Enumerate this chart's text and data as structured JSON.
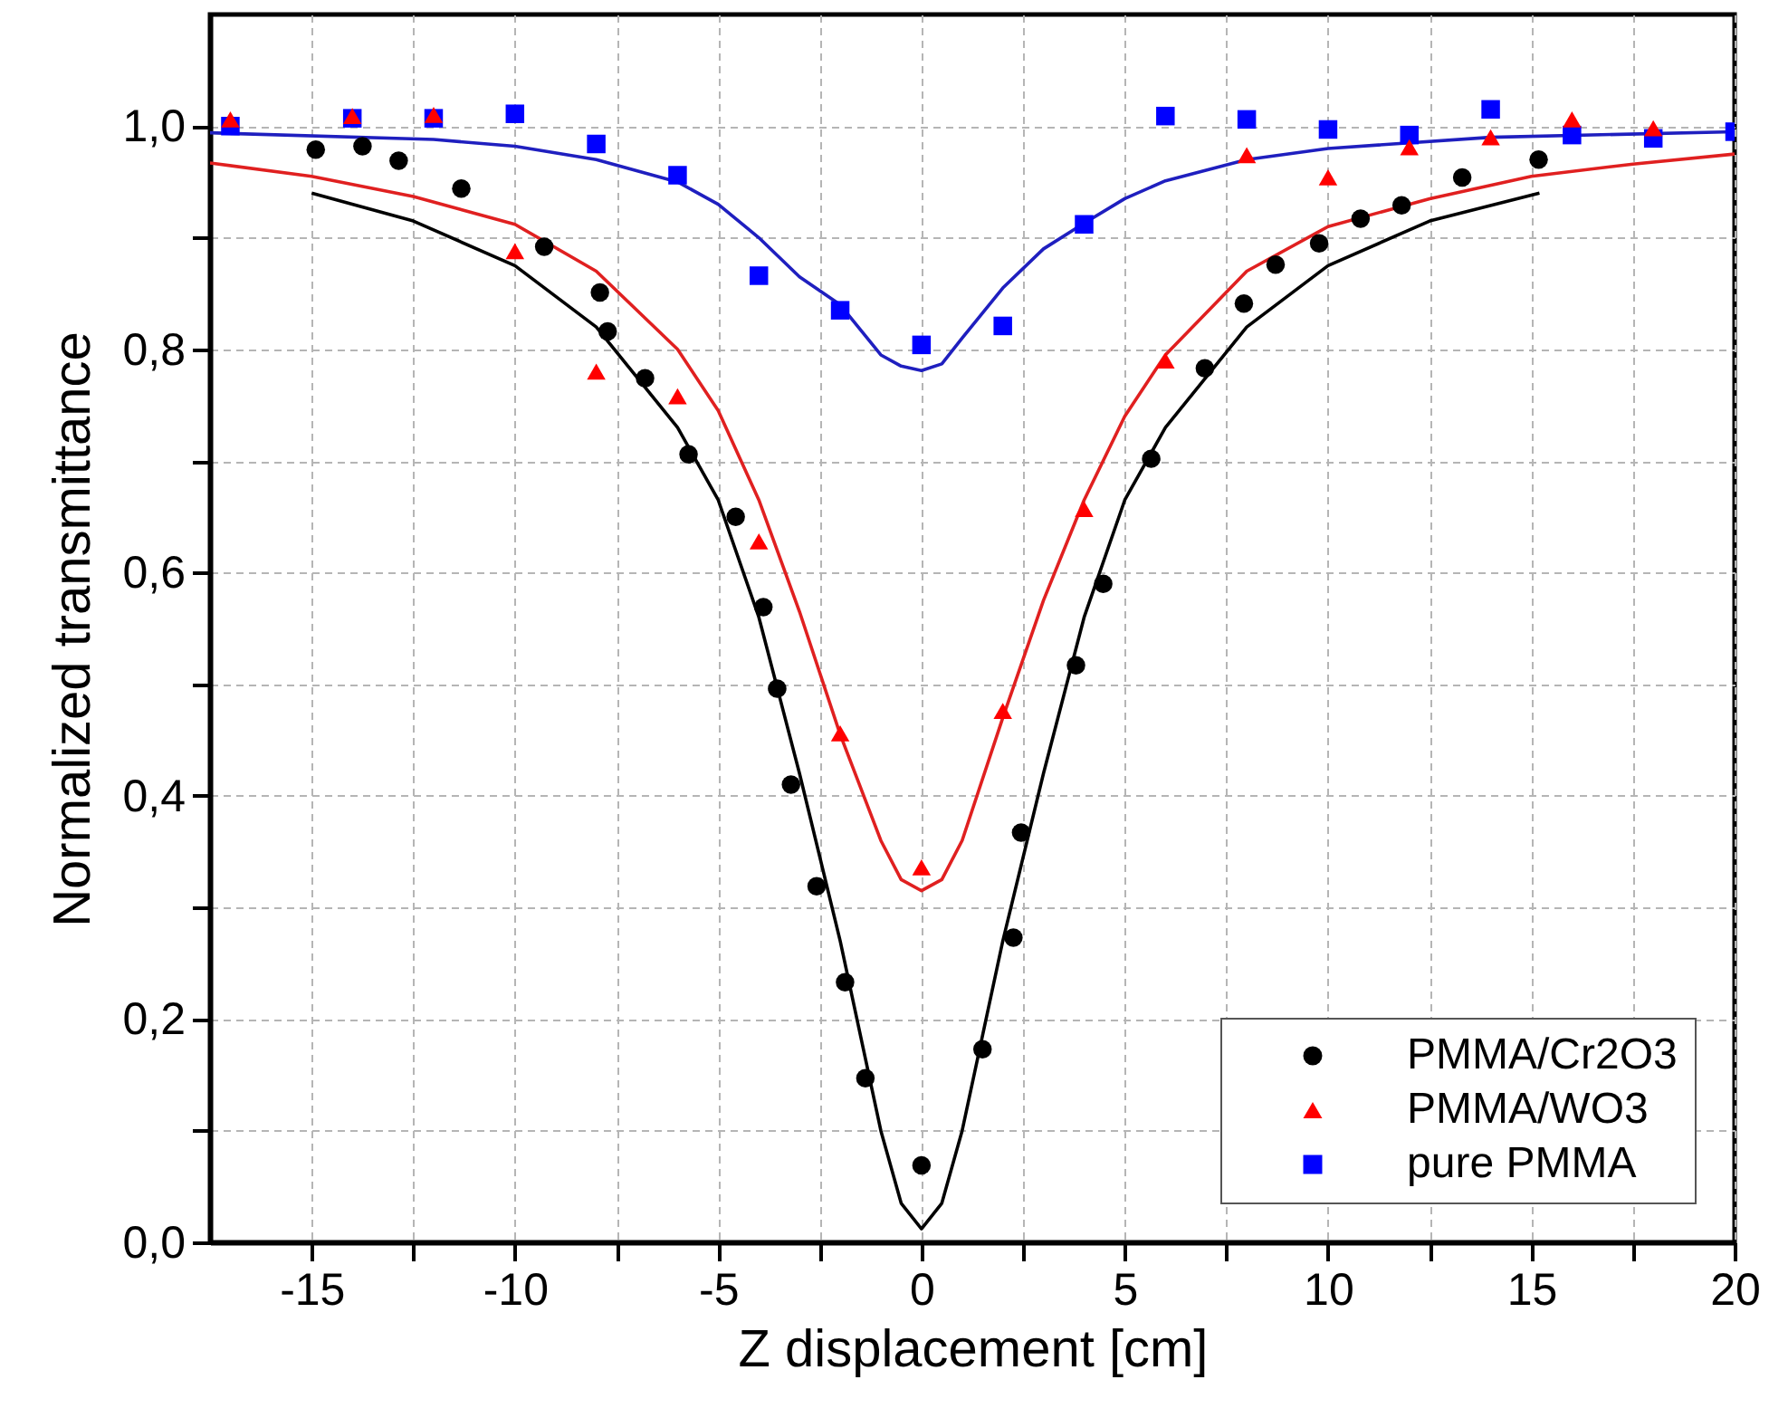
{
  "chart_data": {
    "type": "scatter",
    "xlabel": "Z displacement  [cm]",
    "ylabel": "Normalized transmittance",
    "xlim": [
      -17.5,
      20
    ],
    "ylim": [
      0,
      1.1
    ],
    "xticks": [
      -15,
      {
        "value": -12.5,
        "label": null
      },
      -10,
      {
        "value": -7.5,
        "label": null
      },
      -5,
      {
        "value": -2.5,
        "label": null
      },
      0,
      {
        "value": 2.5,
        "label": null
      },
      5,
      {
        "value": 7.5,
        "label": null
      },
      10,
      {
        "value": 12.5,
        "label": null
      },
      15,
      {
        "value": 17.5,
        "label": null
      },
      20
    ],
    "yticks": [
      {
        "value": 0,
        "label": "0,0"
      },
      {
        "value": 0.1,
        "label": null
      },
      {
        "value": 0.2,
        "label": "0,2"
      },
      {
        "value": 0.3,
        "label": null
      },
      {
        "value": 0.4,
        "label": "0,4"
      },
      {
        "value": 0.5,
        "label": null
      },
      {
        "value": 0.6,
        "label": "0,6"
      },
      {
        "value": 0.7,
        "label": null
      },
      {
        "value": 0.8,
        "label": "0,8"
      },
      {
        "value": 0.9,
        "label": null
      },
      {
        "value": 1.0,
        "label": "1,0"
      }
    ],
    "grid": true,
    "legend": "bottom right",
    "series": [
      {
        "type": "line",
        "color": "#000000",
        "marker": "none",
        "x": [
          -15,
          -12.5,
          -10,
          -8,
          -6,
          -5,
          -4,
          -3,
          -2,
          -1,
          -0.5,
          0,
          0.5,
          1,
          2,
          3,
          4,
          5,
          6,
          8,
          10,
          12.5,
          15.2
        ],
        "values": [
          0.94,
          0.915,
          0.875,
          0.82,
          0.73,
          0.665,
          0.56,
          0.42,
          0.27,
          0.1,
          0.035,
          0.012,
          0.035,
          0.1,
          0.27,
          0.42,
          0.56,
          0.665,
          0.73,
          0.82,
          0.875,
          0.915,
          0.94
        ]
      },
      {
        "type": "line",
        "color": "#e02020",
        "marker": "none",
        "x": [
          -17.5,
          -15,
          -12.5,
          -10,
          -8,
          -6,
          -5,
          -4,
          -3,
          -2,
          -1,
          -0.5,
          0,
          0.5,
          1,
          2,
          3,
          4,
          5,
          6,
          8,
          10,
          12.5,
          15,
          17.5,
          20
        ],
        "values": [
          0.967,
          0.955,
          0.937,
          0.912,
          0.87,
          0.8,
          0.745,
          0.665,
          0.565,
          0.455,
          0.36,
          0.325,
          0.315,
          0.325,
          0.36,
          0.47,
          0.575,
          0.665,
          0.74,
          0.795,
          0.87,
          0.91,
          0.935,
          0.955,
          0.966,
          0.975
        ]
      },
      {
        "type": "line",
        "color": "#1f1fbf",
        "marker": "none",
        "x": [
          -17.5,
          -12,
          -10,
          -8,
          -6,
          -5,
          -4,
          -3,
          -2,
          -1,
          -0.5,
          0,
          0.5,
          1,
          2,
          3,
          4,
          5,
          6,
          8,
          10,
          14,
          20
        ],
        "values": [
          0.994,
          0.988,
          0.982,
          0.97,
          0.95,
          0.93,
          0.9,
          0.865,
          0.84,
          0.795,
          0.785,
          0.781,
          0.787,
          0.81,
          0.855,
          0.89,
          0.913,
          0.935,
          0.951,
          0.97,
          0.98,
          0.99,
          0.995
        ]
      },
      {
        "name": "PMMA/Cr2O3",
        "color": "#000000",
        "marker": "circle",
        "x": [
          -14.9,
          -13.75,
          -12.86,
          -11.32,
          -9.28,
          -7.91,
          -7.72,
          -6.8,
          -5.73,
          -4.57,
          -3.89,
          -3.55,
          -3.21,
          -2.58,
          -1.88,
          -1.38,
          0,
          1.5,
          2.26,
          2.45,
          3.8,
          4.47,
          5.65,
          6.97,
          7.93,
          8.71,
          9.78,
          10.8,
          11.81,
          13.3,
          15.18
        ],
        "values": [
          0.979,
          0.982,
          0.969,
          0.944,
          0.892,
          0.851,
          0.816,
          0.774,
          0.706,
          0.65,
          0.569,
          0.496,
          0.41,
          0.319,
          0.233,
          0.147,
          0.069,
          0.173,
          0.273,
          0.367,
          0.517,
          0.59,
          0.702,
          0.783,
          0.841,
          0.876,
          0.895,
          0.917,
          0.929,
          0.954,
          0.97
        ]
      },
      {
        "name": "PMMA/WO3",
        "color": "#ff0000",
        "marker": "triangle",
        "x": [
          -17,
          -14,
          -12,
          -10,
          -8,
          -6,
          -4,
          -2,
          0,
          2,
          4,
          6,
          8,
          10,
          12,
          14,
          16,
          18
        ],
        "values": [
          1.006,
          1.009,
          1.01,
          0.888,
          0.78,
          0.758,
          0.628,
          0.456,
          0.336,
          0.476,
          0.657,
          0.79,
          0.974,
          0.954,
          0.981,
          0.99,
          1.006,
          0.998
        ]
      },
      {
        "name": "pure PMMA",
        "color": "#0000ff",
        "marker": "square",
        "x": [
          -17,
          -14,
          -12,
          -10,
          -8,
          -6,
          -4,
          -2,
          0,
          2,
          4,
          6,
          8,
          10,
          12,
          14,
          16,
          18,
          20
        ],
        "values": [
          1.0,
          1.007,
          1.007,
          1.011,
          0.984,
          0.956,
          0.866,
          0.835,
          0.804,
          0.821,
          0.912,
          1.009,
          1.006,
          0.997,
          0.992,
          1.015,
          0.992,
          0.989,
          0.995
        ]
      }
    ]
  }
}
